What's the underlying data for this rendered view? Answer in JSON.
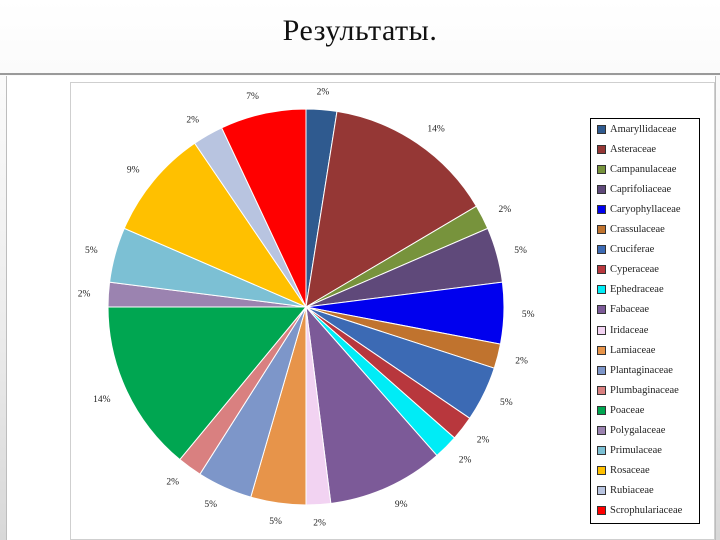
{
  "slide": {
    "title": "Результаты."
  },
  "chart_data": {
    "type": "pie",
    "title": "",
    "slices": [
      {
        "name": "Amaryllidaceae",
        "label": "2%",
        "value": 2.5,
        "color": "#2f5a8f"
      },
      {
        "name": "Asteraceae",
        "label": "14%",
        "value": 14,
        "color": "#953735"
      },
      {
        "name": "Campanulaceae",
        "label": "2%",
        "value": 2,
        "color": "#77933c"
      },
      {
        "name": "Caprifoliaceae",
        "label": "5%",
        "value": 4.5,
        "color": "#5f497a"
      },
      {
        "name": "Caryophyllaceae",
        "label": "5%",
        "value": 5,
        "color": "#0000ee"
      },
      {
        "name": "Crassulaceae",
        "label": "2%",
        "value": 2,
        "color": "#c0732e"
      },
      {
        "name": "Cruciferae",
        "label": "5%",
        "value": 4.5,
        "color": "#3c6ab4"
      },
      {
        "name": "Cyperaceae",
        "label": "2%",
        "value": 2,
        "color": "#b8373d"
      },
      {
        "name": "Ephedraceae",
        "label": "2%",
        "value": 2,
        "color": "#00ecf6"
      },
      {
        "name": "Fabaceae",
        "label": "9%",
        "value": 9.5,
        "color": "#7c5a98"
      },
      {
        "name": "Iridaceae",
        "label": "2%",
        "value": 2,
        "color": "#f2d3f2"
      },
      {
        "name": "Lamiaceae",
        "label": "5%",
        "value": 4.5,
        "color": "#e7944a"
      },
      {
        "name": "Plantaginaceae",
        "label": "5%",
        "value": 4.5,
        "color": "#7d96c9"
      },
      {
        "name": "Plumbaginaceae",
        "label": "2%",
        "value": 2,
        "color": "#d98080"
      },
      {
        "name": "Poaceae",
        "label": "14%",
        "value": 14,
        "color": "#00a651"
      },
      {
        "name": "Polygalaceae",
        "label": "2%",
        "value": 2,
        "color": "#9b83b0"
      },
      {
        "name": "Primulaceae",
        "label": "5%",
        "value": 4.5,
        "color": "#7cc0d4"
      },
      {
        "name": "Rosaceae",
        "label": "9%",
        "value": 9,
        "color": "#ffc000"
      },
      {
        "name": "Rubiaceae",
        "label": "2%",
        "value": 2.5,
        "color": "#b8c4e0"
      },
      {
        "name": "Scrophulariaceae",
        "label": "7%",
        "value": 7,
        "color": "#ff0000"
      }
    ],
    "legend_position": "right"
  }
}
